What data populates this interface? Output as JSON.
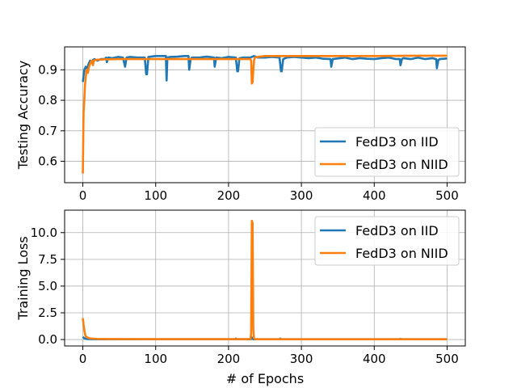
{
  "figure": {
    "background": "#ffffff"
  },
  "chart_data": [
    {
      "type": "line",
      "title": "",
      "xlabel": "",
      "ylabel": "Testing Accuracy",
      "xlim": [
        -25,
        525
      ],
      "ylim": [
        0.53,
        0.975
      ],
      "xticks": [
        0,
        100,
        200,
        300,
        400,
        500
      ],
      "xtick_labels": [
        "0",
        "100",
        "200",
        "300",
        "400",
        "500"
      ],
      "yticks": [
        0.6,
        0.7,
        0.8,
        0.9
      ],
      "ytick_labels": [
        "0.6",
        "0.7",
        "0.8",
        "0.9"
      ],
      "grid": true,
      "legend_position": "lower-right",
      "series": [
        {
          "name": "FedD3 on IID",
          "color": "#1f77b4",
          "x": [
            0,
            1,
            2,
            4,
            6,
            8,
            10,
            12,
            14,
            16,
            20,
            25,
            30,
            32,
            33,
            35,
            40,
            48,
            55,
            58,
            60,
            65,
            75,
            85,
            87,
            88,
            90,
            100,
            110,
            114,
            115,
            116,
            120,
            130,
            140,
            145,
            146,
            148,
            150,
            160,
            170,
            180,
            181,
            183,
            190,
            200,
            210,
            212,
            213,
            215,
            220,
            225,
            230,
            235,
            240,
            250,
            260,
            270,
            272,
            273,
            275,
            280,
            290,
            300,
            310,
            320,
            330,
            340,
            341,
            343,
            350,
            360,
            370,
            380,
            390,
            400,
            410,
            420,
            430,
            435,
            436,
            438,
            440,
            450,
            460,
            470,
            480,
            485,
            486,
            488,
            490,
            500
          ],
          "y": [
            0.86,
            0.88,
            0.9,
            0.91,
            0.905,
            0.92,
            0.93,
            0.925,
            0.932,
            0.935,
            0.93,
            0.935,
            0.935,
            0.94,
            0.925,
            0.94,
            0.938,
            0.942,
            0.94,
            0.91,
            0.94,
            0.942,
            0.94,
            0.94,
            0.885,
            0.885,
            0.942,
            0.945,
            0.945,
            0.945,
            0.865,
            0.94,
            0.942,
            0.943,
            0.945,
            0.945,
            0.9,
            0.935,
            0.94,
            0.94,
            0.943,
            0.94,
            0.91,
            0.94,
            0.938,
            0.942,
            0.94,
            0.895,
            0.895,
            0.938,
            0.94,
            0.94,
            0.94,
            0.945,
            0.94,
            0.94,
            0.942,
            0.94,
            0.895,
            0.895,
            0.935,
            0.94,
            0.942,
            0.94,
            0.938,
            0.94,
            0.936,
            0.935,
            0.91,
            0.935,
            0.937,
            0.94,
            0.935,
            0.938,
            0.936,
            0.935,
            0.938,
            0.94,
            0.935,
            0.935,
            0.915,
            0.935,
            0.938,
            0.935,
            0.94,
            0.935,
            0.938,
            0.935,
            0.905,
            0.932,
            0.935,
            0.937
          ]
        },
        {
          "name": "FedD3 on NIID",
          "color": "#ff7f0e",
          "x": [
            0,
            1,
            2,
            3,
            5,
            7,
            8,
            10,
            12,
            14,
            15,
            17,
            20,
            30,
            50,
            100,
            150,
            200,
            230,
            231,
            232,
            233,
            234,
            235,
            236,
            240,
            250,
            300,
            350,
            400,
            450,
            500
          ],
          "y": [
            0.56,
            0.76,
            0.8,
            0.85,
            0.9,
            0.89,
            0.905,
            0.92,
            0.93,
            0.915,
            0.93,
            0.932,
            0.933,
            0.934,
            0.935,
            0.935,
            0.935,
            0.935,
            0.935,
            0.93,
            0.855,
            0.86,
            0.9,
            0.93,
            0.94,
            0.942,
            0.945,
            0.945,
            0.945,
            0.945,
            0.946,
            0.946
          ]
        }
      ]
    },
    {
      "type": "line",
      "title": "",
      "xlabel": "# of Epochs",
      "ylabel": "Training Loss",
      "xlim": [
        -25,
        525
      ],
      "ylim": [
        -0.6,
        12.1
      ],
      "xticks": [
        0,
        100,
        200,
        300,
        400,
        500
      ],
      "xtick_labels": [
        "0",
        "100",
        "200",
        "300",
        "400",
        "500"
      ],
      "yticks": [
        0.0,
        2.5,
        5.0,
        7.5,
        10.0
      ],
      "ytick_labels": [
        "0.0",
        "2.5",
        "5.0",
        "7.5",
        "10.0"
      ],
      "grid": true,
      "legend_position": "upper-right",
      "series": [
        {
          "name": "FedD3 on IID",
          "color": "#1f77b4",
          "x": [
            0,
            1,
            2,
            3,
            5,
            8,
            12,
            20,
            100,
            209,
            210,
            211,
            230,
            231,
            232,
            233,
            234,
            236,
            270,
            271,
            272,
            273,
            300,
            400,
            435,
            436,
            437,
            500
          ],
          "y": [
            0.25,
            0.18,
            0.12,
            0.1,
            0.06,
            0.05,
            0.04,
            0.03,
            0.03,
            0.03,
            0.09,
            0.03,
            0.03,
            0.05,
            0.2,
            0.06,
            0.03,
            0.03,
            0.03,
            0.09,
            0.03,
            0.03,
            0.03,
            0.03,
            0.03,
            0.07,
            0.03,
            0.03
          ]
        },
        {
          "name": "FedD3 on NIID",
          "color": "#ff7f0e",
          "x": [
            0,
            1,
            2,
            3,
            4,
            6,
            8,
            10,
            12,
            15,
            20,
            30,
            100,
            200,
            230,
            231,
            232,
            233,
            234,
            235,
            236,
            240,
            300,
            400,
            500
          ],
          "y": [
            2.0,
            1.4,
            0.9,
            0.5,
            0.3,
            0.2,
            0.15,
            0.12,
            0.1,
            0.08,
            0.06,
            0.05,
            0.04,
            0.04,
            0.04,
            0.5,
            11.1,
            10.9,
            1.0,
            0.1,
            0.04,
            0.03,
            0.03,
            0.03,
            0.03
          ]
        }
      ]
    }
  ]
}
